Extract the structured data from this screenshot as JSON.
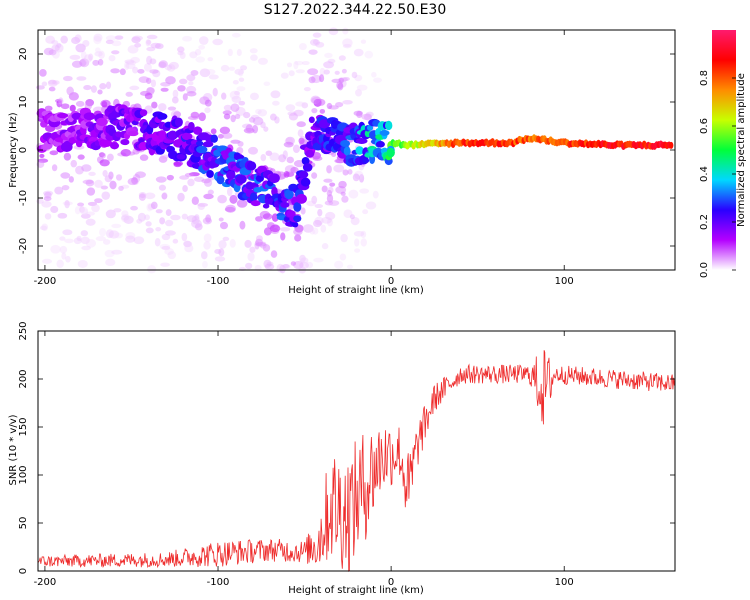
{
  "title": "S127.2022.344.22.50.E30",
  "chart_data": [
    {
      "type": "heatmap",
      "xlabel": "Height of straight line (km)",
      "ylabel": "Frequency (Hz)",
      "xlim": [
        -204,
        164
      ],
      "ylim": [
        -25,
        25
      ],
      "xticks": [
        -200,
        -100,
        0,
        100
      ],
      "yticks": [
        -20,
        -10,
        0,
        10,
        20
      ],
      "colorbar": {
        "label": "Normalized spectral amplitude",
        "range": [
          0,
          1
        ],
        "ticks": [
          "0.0",
          "0.2",
          "0.4",
          "0.6",
          "0.8"
        ],
        "colors": [
          "#ffffff",
          "#b400ff",
          "#2a00ff",
          "#00d8ff",
          "#00ff3a",
          "#c8ff00",
          "#ff8c00",
          "#ff0000",
          "#ff1a6e"
        ]
      },
      "ridge": [
        {
          "x": -200,
          "y": 4,
          "amp": 0.15
        },
        {
          "x": -150,
          "y": 5,
          "amp": 0.2
        },
        {
          "x": -120,
          "y": 2,
          "amp": 0.25
        },
        {
          "x": -100,
          "y": -2,
          "amp": 0.3
        },
        {
          "x": -80,
          "y": -7,
          "amp": 0.3
        },
        {
          "x": -55,
          "y": -12,
          "amp": 0.28
        },
        {
          "x": -45,
          "y": 4,
          "amp": 0.25
        },
        {
          "x": -25,
          "y": 1,
          "amp": 0.3
        },
        {
          "x": -10,
          "y": 2,
          "amp": 0.45
        },
        {
          "x": 10,
          "y": 1,
          "amp": 0.6
        },
        {
          "x": 40,
          "y": 1.5,
          "amp": 0.85
        },
        {
          "x": 70,
          "y": 1.5,
          "amp": 0.85
        },
        {
          "x": 80,
          "y": 2.5,
          "amp": 0.8
        },
        {
          "x": 100,
          "y": 1.5,
          "amp": 0.85
        },
        {
          "x": 130,
          "y": 1,
          "amp": 0.9
        },
        {
          "x": 164,
          "y": 1,
          "amp": 0.9
        }
      ]
    },
    {
      "type": "line",
      "xlabel": "Height of straight line (km)",
      "ylabel": "SNR (10 * v/v)",
      "xlim": [
        -204,
        164
      ],
      "ylim": [
        0,
        250
      ],
      "xticks": [
        -200,
        -100,
        0,
        100
      ],
      "yticks": [
        0,
        50,
        100,
        150,
        200,
        250
      ],
      "color": "#ee2b2b",
      "envelope": [
        {
          "x": -204,
          "y": 10,
          "noise": 6
        },
        {
          "x": -130,
          "y": 12,
          "noise": 8
        },
        {
          "x": -100,
          "y": 18,
          "noise": 14
        },
        {
          "x": -70,
          "y": 22,
          "noise": 12
        },
        {
          "x": -50,
          "y": 20,
          "noise": 12
        },
        {
          "x": -42,
          "y": 30,
          "noise": 30
        },
        {
          "x": -35,
          "y": 70,
          "noise": 60
        },
        {
          "x": -25,
          "y": 60,
          "noise": 65
        },
        {
          "x": -15,
          "y": 90,
          "noise": 60
        },
        {
          "x": -5,
          "y": 120,
          "noise": 40
        },
        {
          "x": 5,
          "y": 125,
          "noise": 30
        },
        {
          "x": 10,
          "y": 80,
          "noise": 45
        },
        {
          "x": 15,
          "y": 130,
          "noise": 25
        },
        {
          "x": 25,
          "y": 180,
          "noise": 15
        },
        {
          "x": 40,
          "y": 205,
          "noise": 10
        },
        {
          "x": 80,
          "y": 205,
          "noise": 10
        },
        {
          "x": 88,
          "y": 190,
          "noise": 45
        },
        {
          "x": 95,
          "y": 205,
          "noise": 10
        },
        {
          "x": 164,
          "y": 195,
          "noise": 10
        }
      ]
    }
  ]
}
